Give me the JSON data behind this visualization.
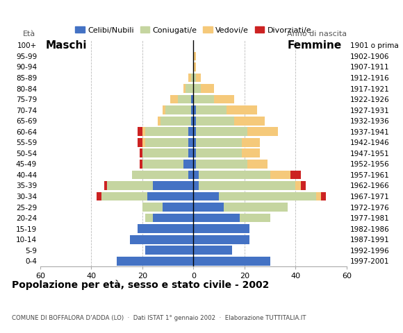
{
  "age_groups": [
    "0-4",
    "5-9",
    "10-14",
    "15-19",
    "20-24",
    "25-29",
    "30-34",
    "35-39",
    "40-44",
    "45-49",
    "50-54",
    "55-59",
    "60-64",
    "65-69",
    "70-74",
    "75-79",
    "80-84",
    "85-89",
    "90-94",
    "95-99",
    "100+"
  ],
  "birth_years": [
    "1997-2001",
    "1992-1996",
    "1987-1991",
    "1982-1986",
    "1977-1981",
    "1972-1976",
    "1967-1971",
    "1962-1966",
    "1957-1961",
    "1952-1956",
    "1947-1951",
    "1942-1946",
    "1937-1941",
    "1932-1936",
    "1927-1931",
    "1922-1926",
    "1917-1921",
    "1912-1916",
    "1907-1911",
    "1902-1906",
    "1901 o prima"
  ],
  "male": {
    "celibi": [
      30,
      19,
      25,
      22,
      16,
      12,
      18,
      16,
      2,
      4,
      2,
      2,
      2,
      1,
      1,
      1,
      0,
      0,
      0,
      0,
      0
    ],
    "coniugati": [
      0,
      0,
      0,
      0,
      3,
      8,
      18,
      18,
      22,
      16,
      18,
      17,
      17,
      12,
      10,
      5,
      3,
      1,
      0,
      0,
      0
    ],
    "vedovi": [
      0,
      0,
      0,
      0,
      0,
      0,
      0,
      0,
      0,
      0,
      0,
      1,
      1,
      1,
      1,
      3,
      1,
      1,
      0,
      0,
      0
    ],
    "divorziati": [
      0,
      0,
      0,
      0,
      0,
      0,
      2,
      1,
      0,
      1,
      1,
      2,
      2,
      0,
      0,
      0,
      0,
      0,
      0,
      0,
      0
    ]
  },
  "female": {
    "nubili": [
      30,
      15,
      22,
      22,
      18,
      12,
      10,
      2,
      2,
      1,
      1,
      1,
      1,
      1,
      1,
      0,
      0,
      0,
      0,
      0,
      0
    ],
    "coniugate": [
      0,
      0,
      0,
      0,
      12,
      25,
      38,
      38,
      28,
      20,
      18,
      18,
      20,
      15,
      12,
      8,
      3,
      1,
      0,
      0,
      0
    ],
    "vedove": [
      0,
      0,
      0,
      0,
      0,
      0,
      2,
      2,
      8,
      8,
      7,
      7,
      12,
      12,
      12,
      8,
      5,
      2,
      1,
      1,
      0
    ],
    "divorziate": [
      0,
      0,
      0,
      0,
      0,
      0,
      2,
      2,
      4,
      0,
      0,
      0,
      0,
      0,
      0,
      0,
      0,
      0,
      0,
      0,
      0
    ]
  },
  "colors": {
    "celibi": "#4472c4",
    "coniugati": "#c5d5a0",
    "vedovi": "#f5c97a",
    "divorziati": "#cc2222"
  },
  "xlim": 60,
  "title": "Popolazione per età, sesso e stato civile - 2002",
  "subtitle": "COMUNE DI BOFFALORA D'ADDA (LO)  ·  Dati ISTAT 1° gennaio 2002  ·  Elaborazione TUTTITALIA.IT",
  "legend_labels": [
    "Celibi/Nubili",
    "Coniugati/e",
    "Vedovi/e",
    "Divorziati/e"
  ],
  "background_color": "#ffffff"
}
